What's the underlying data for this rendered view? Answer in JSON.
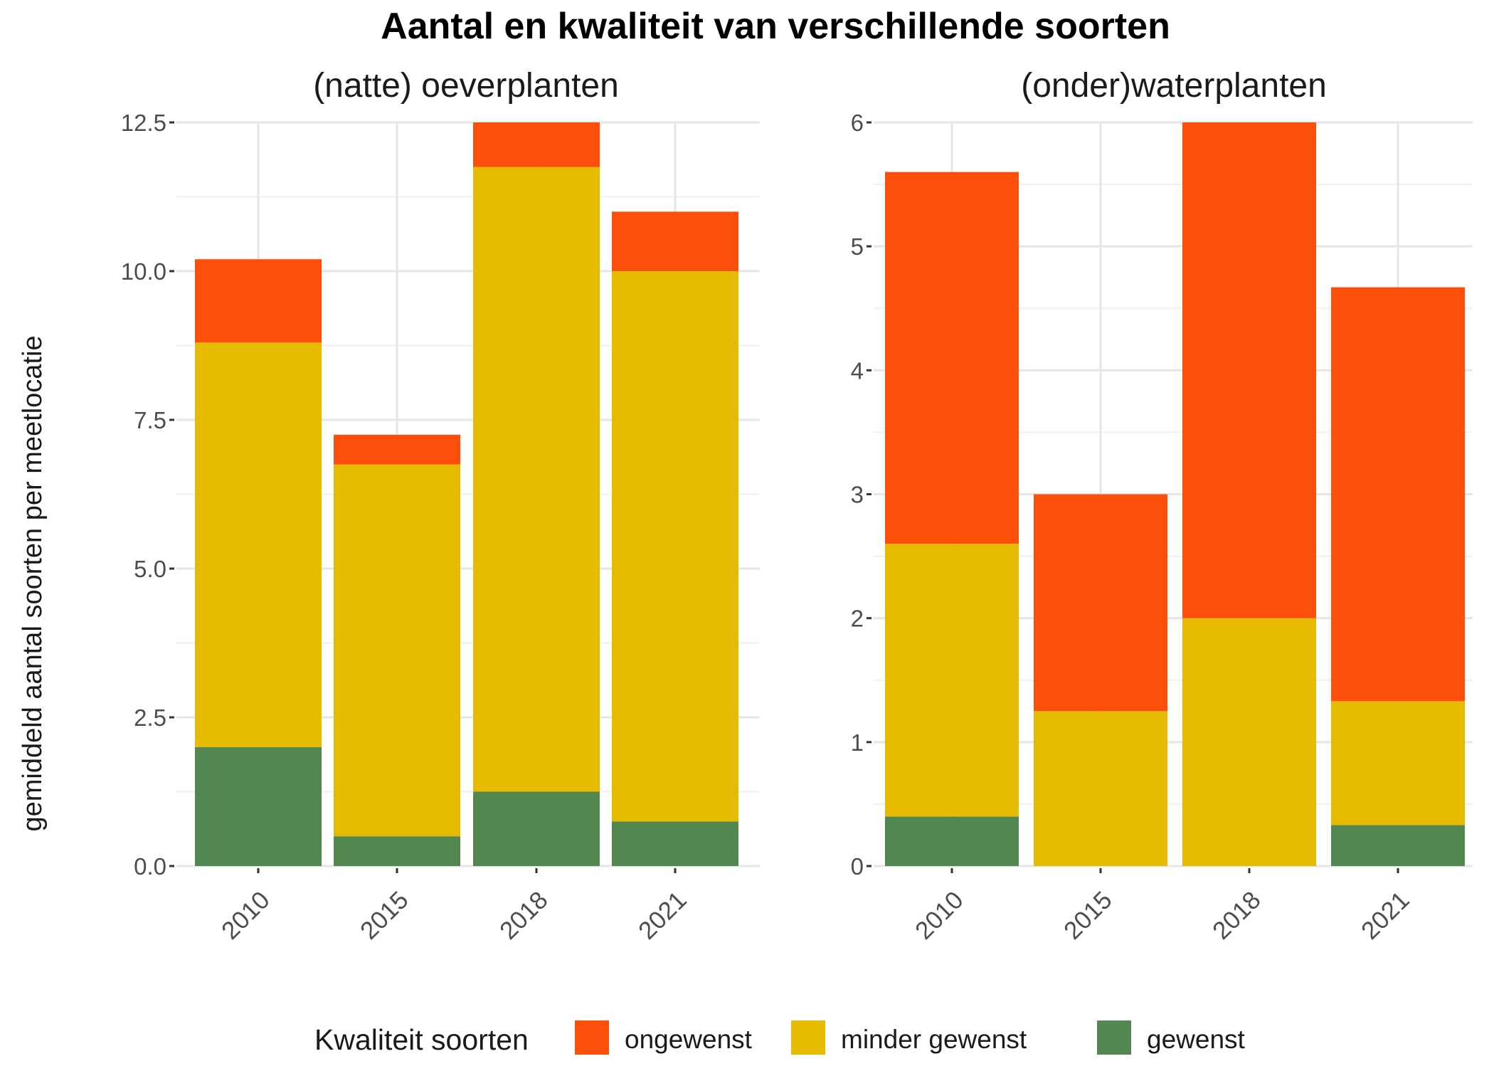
{
  "chart_data": {
    "type": "bar",
    "stacked": true,
    "title": "Aantal en kwaliteit van verschillende soorten",
    "ylabel": "gemiddeld aantal soorten per meetlocatie",
    "legend": {
      "title": "Kwaliteit soorten",
      "position": "bottom",
      "entries": [
        "ongewenst",
        "minder gewenst",
        "gewenst"
      ]
    },
    "colors": {
      "ongewenst": "#fc4f0b",
      "minder gewenst": "#e5ba00",
      "gewenst": "#52874f"
    },
    "grid": true,
    "panels": [
      {
        "title": "(natte) oeverplanten",
        "categories": [
          "2010",
          "2015",
          "2018",
          "2021"
        ],
        "ylim": [
          0,
          12.5
        ],
        "yticks": [
          "0.0",
          "2.5",
          "5.0",
          "7.5",
          "10.0",
          "12.5"
        ],
        "ytick_values": [
          0,
          2.5,
          5,
          7.5,
          10,
          12.5
        ],
        "series": [
          {
            "name": "gewenst",
            "values": [
              2.0,
              0.5,
              1.25,
              0.75
            ]
          },
          {
            "name": "minder gewenst",
            "values": [
              6.8,
              6.25,
              10.5,
              9.25
            ]
          },
          {
            "name": "ongewenst",
            "values": [
              1.4,
              0.5,
              0.75,
              1.0
            ]
          }
        ]
      },
      {
        "title": "(onder)waterplanten",
        "categories": [
          "2010",
          "2015",
          "2018",
          "2021"
        ],
        "ylim": [
          0,
          6
        ],
        "yticks": [
          "0",
          "1",
          "2",
          "3",
          "4",
          "5",
          "6"
        ],
        "ytick_values": [
          0,
          1,
          2,
          3,
          4,
          5,
          6
        ],
        "series": [
          {
            "name": "gewenst",
            "values": [
              0.4,
              0.0,
              0.0,
              0.33
            ]
          },
          {
            "name": "minder gewenst",
            "values": [
              2.2,
              1.25,
              2.0,
              1.0
            ]
          },
          {
            "name": "ongewenst",
            "values": [
              3.0,
              1.75,
              4.0,
              3.34
            ]
          }
        ]
      }
    ]
  }
}
